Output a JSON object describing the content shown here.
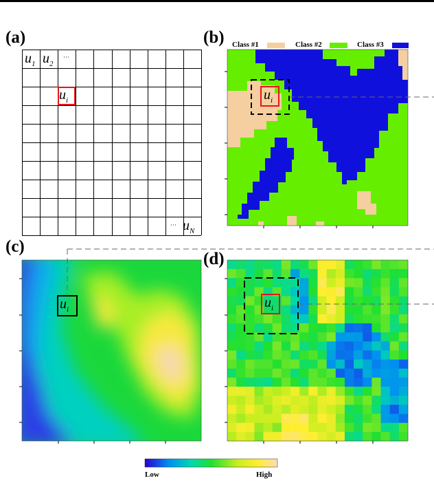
{
  "panels": {
    "a": "(a)",
    "b": "(b)",
    "c": "(c)",
    "d": "(d)"
  },
  "grid_labels": {
    "u": "u",
    "u1_sub": "1",
    "u2_sub": "2",
    "ui_sub": "i",
    "uN_sub": "N",
    "dots": "···"
  },
  "legend": {
    "class1": "Class #1",
    "class2": "Class #2",
    "class3": "Class #3",
    "class1_color": "#f5cfa0",
    "class2_color": "#66ee00",
    "class3_color": "#1010dd"
  },
  "colorbar": {
    "low": "Low",
    "high": "High"
  },
  "highlight_color": "#e8141c"
}
